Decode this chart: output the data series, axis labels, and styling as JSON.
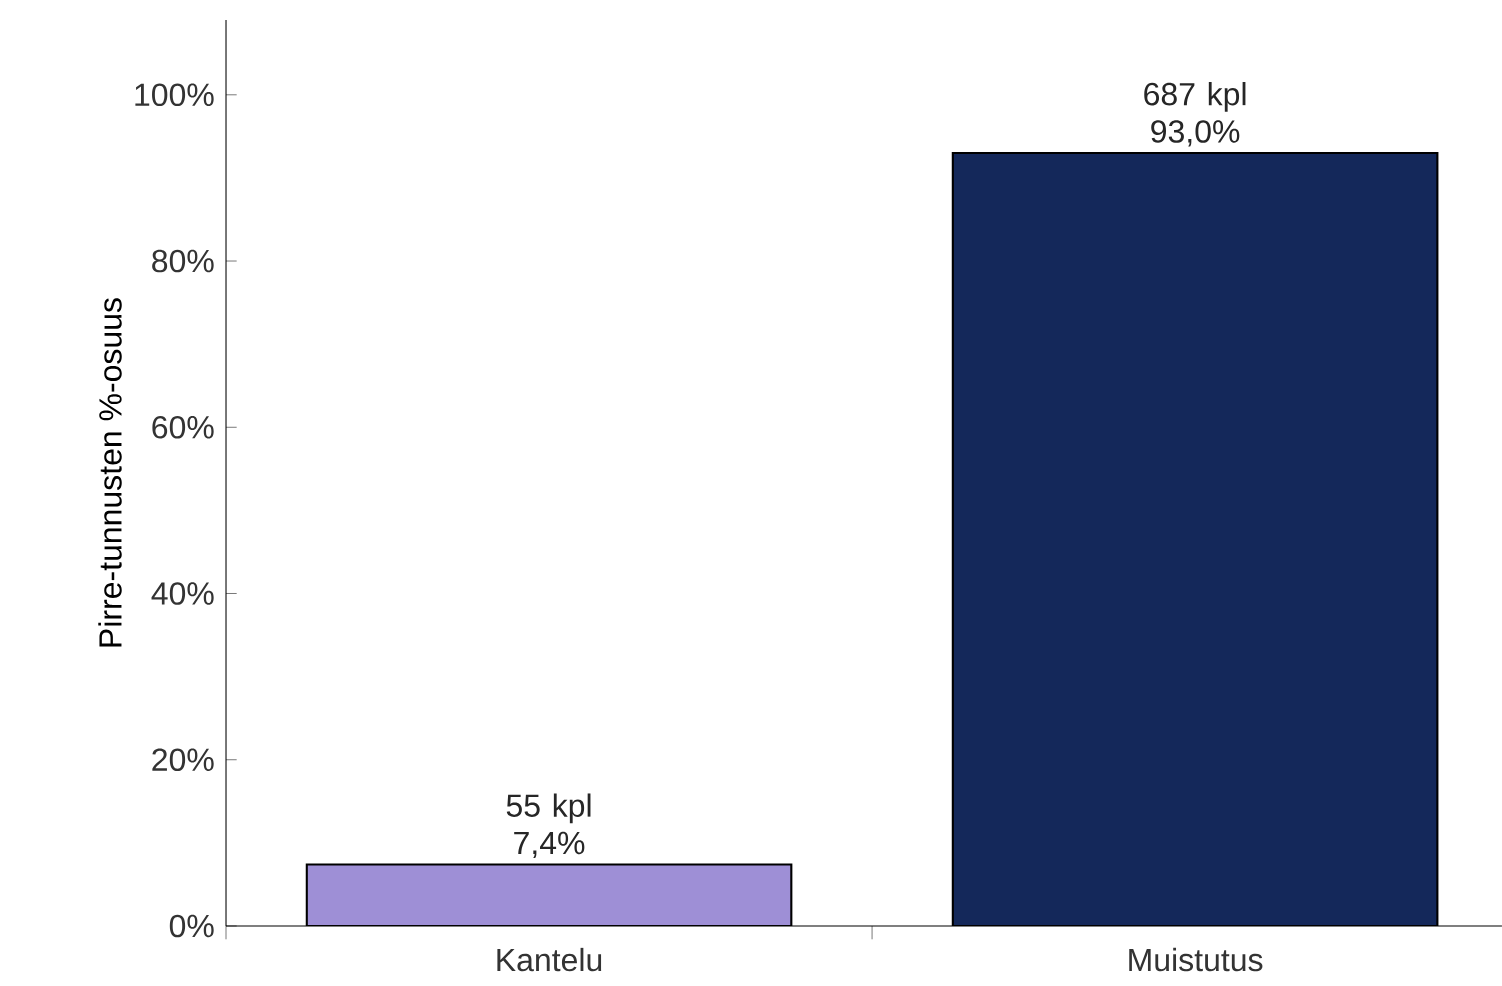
{
  "chart_data": {
    "type": "bar",
    "ylabel": "Pirre-tunnusten %-osuus",
    "categories": [
      "Kantelu",
      "Muistutus"
    ],
    "values": [
      7.4,
      93.0
    ],
    "colors": [
      "#9e8fd6",
      "#14285a"
    ],
    "value_labels": [
      "55 kpl 7,4%",
      "687 kpl 93,0%"
    ],
    "ylim": [
      0,
      109
    ],
    "yticks": [
      {
        "value": 0,
        "label": "0%"
      },
      {
        "value": 20,
        "label": "20%"
      },
      {
        "value": 40,
        "label": "40%"
      },
      {
        "value": 60,
        "label": "60%"
      },
      {
        "value": 80,
        "label": "80%"
      },
      {
        "value": 100,
        "label": "100%"
      }
    ],
    "grid": false
  }
}
